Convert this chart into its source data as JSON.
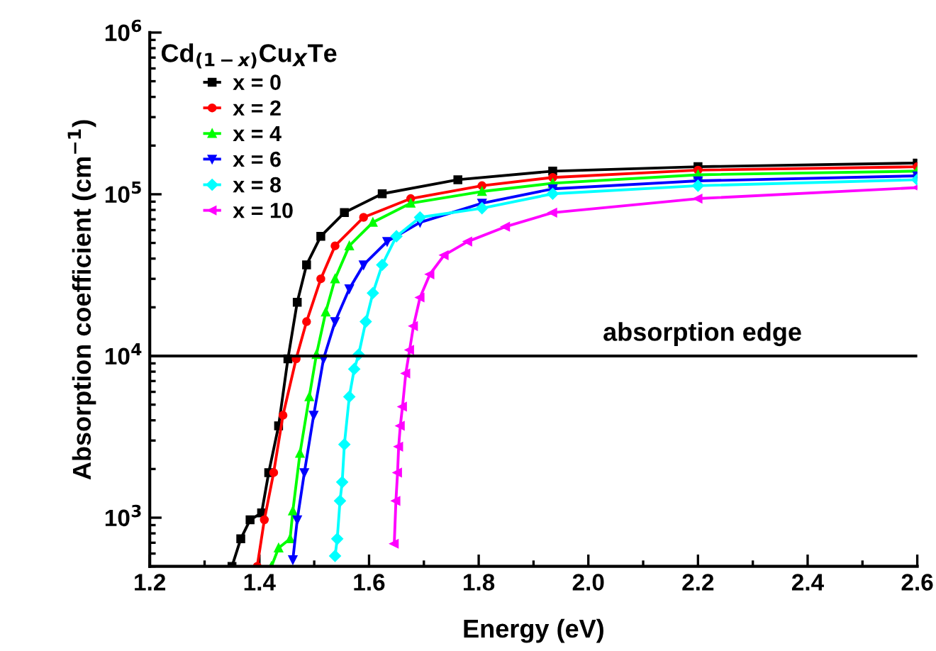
{
  "chart_data": {
    "type": "line",
    "xlabel": "Energy (eV)",
    "ylabel": "Absorption coefficient (cm$^{−1}$)",
    "legend_title": "Cd$_{(1−x)}$Cu$_{X}$Te",
    "log": "y",
    "legend": "top left",
    "grid": false,
    "xlim": [
      1.2,
      2.6
    ],
    "xticks": [
      {
        "value": 1.2,
        "label": "1.2"
      },
      {
        "value": 1.4,
        "label": "1.4"
      },
      {
        "value": 1.6,
        "label": "1.6"
      },
      {
        "value": 1.8,
        "label": "1.8"
      },
      {
        "value": 2.0,
        "label": "2.0"
      },
      {
        "value": 2.2,
        "label": "2.2"
      },
      {
        "value": 2.4,
        "label": "2.4"
      },
      {
        "value": 2.6,
        "label": "2.6"
      }
    ],
    "ylim": [
      500,
      1000000
    ],
    "yticks": [
      {
        "value": 1000,
        "label": "10$^{3}$"
      },
      {
        "value": 10000,
        "label": "10$^{4}$"
      },
      {
        "value": 100000,
        "label": "10$^{5}$"
      },
      {
        "value": 1000000,
        "label": "10$^{6}$"
      }
    ],
    "ref_lines": [
      {
        "axis": "y",
        "value": 10000,
        "label": "absorption edge",
        "color": "#000000",
        "line_style": "solid"
      }
    ],
    "series": [
      {
        "name": "x = 0",
        "color": "#000000",
        "marker": "square",
        "x": [
          1.35,
          1.366,
          1.383,
          1.404,
          1.417,
          1.435,
          1.452,
          1.469,
          1.486,
          1.512,
          1.555,
          1.624,
          1.762,
          1.935,
          2.2,
          2.6
        ],
        "values": [
          500,
          740,
          970,
          1070,
          1900,
          3700,
          9600,
          21500,
          36600,
          55000,
          77000,
          100700,
          123000,
          139000,
          148000,
          156000
        ]
      },
      {
        "name": "x = 2",
        "color": "#ff0000",
        "marker": "circle",
        "x": [
          1.396,
          1.409,
          1.426,
          1.443,
          1.467,
          1.486,
          1.512,
          1.538,
          1.59,
          1.676,
          1.806,
          1.935,
          2.2,
          2.6
        ],
        "values": [
          500,
          970,
          1900,
          4300,
          9600,
          16300,
          30000,
          48000,
          72000,
          94000,
          113000,
          127000,
          141000,
          148000
        ]
      },
      {
        "name": "x = 4",
        "color": "#00ff00",
        "marker": "triangle",
        "x": [
          1.422,
          1.435,
          1.456,
          1.461,
          1.474,
          1.491,
          1.504,
          1.521,
          1.538,
          1.564,
          1.607,
          1.676,
          1.806,
          1.935,
          2.2,
          2.6
        ],
        "values": [
          500,
          650,
          740,
          1100,
          2500,
          5600,
          10200,
          18700,
          30000,
          48000,
          67000,
          88000,
          104000,
          117000,
          132000,
          139000
        ]
      },
      {
        "name": "x = 6",
        "color": "#0000ff",
        "marker": "triangle_down",
        "x": [
          1.461,
          1.469,
          1.482,
          1.499,
          1.517,
          1.538,
          1.564,
          1.59,
          1.633,
          1.693,
          1.806,
          1.935,
          2.2,
          2.6
        ],
        "values": [
          550,
          970,
          1900,
          4300,
          9600,
          16300,
          26000,
          36600,
          51000,
          67000,
          88000,
          108000,
          121000,
          130000
        ]
      },
      {
        "name": "x = 8",
        "color": "#00ffff",
        "marker": "diamond",
        "x": [
          1.538,
          1.542,
          1.547,
          1.551,
          1.555,
          1.564,
          1.573,
          1.581,
          1.594,
          1.607,
          1.624,
          1.65,
          1.693,
          1.806,
          1.935,
          2.2,
          2.6
        ],
        "values": [
          580,
          740,
          1270,
          1660,
          2840,
          5600,
          8300,
          10200,
          16300,
          24500,
          36600,
          55000,
          72000,
          82000,
          100700,
          113000,
          123000
        ]
      },
      {
        "name": "x = 10",
        "color": "#ff00ff",
        "marker": "triangle_left",
        "x": [
          1.646,
          1.649,
          1.652,
          1.654,
          1.657,
          1.661,
          1.667,
          1.674,
          1.681,
          1.693,
          1.711,
          1.737,
          1.78,
          1.849,
          1.935,
          2.2,
          2.6
        ],
        "values": [
          690,
          1270,
          1900,
          2750,
          3700,
          4860,
          7800,
          10900,
          15300,
          23000,
          32000,
          42000,
          51000,
          63000,
          77000,
          94000,
          110000
        ]
      }
    ]
  }
}
